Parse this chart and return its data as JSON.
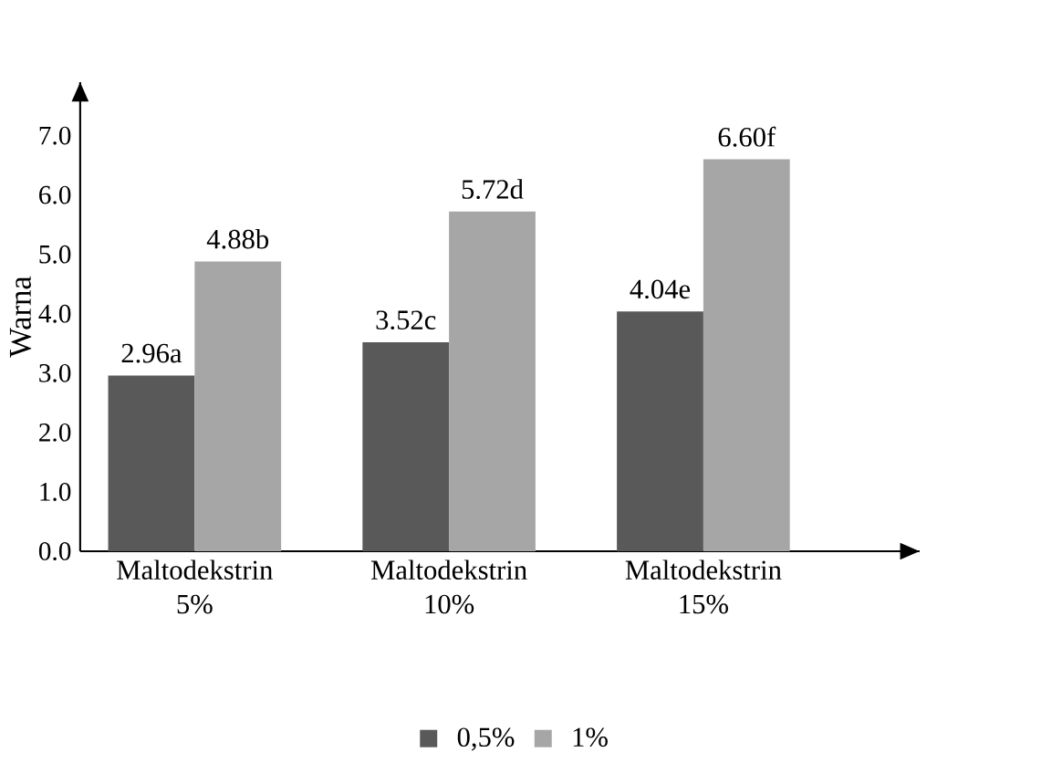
{
  "chart_data": {
    "type": "bar",
    "ylabel": "Warna",
    "categories": [
      "Maltodekstrin 5%",
      "Maltodekstrin 10%",
      "Maltodekstrin 15%"
    ],
    "series": [
      {
        "name": "0,5%",
        "color": "#595959",
        "values": [
          2.96,
          3.52,
          4.04
        ],
        "value_labels": [
          "2.96a",
          "3.52c",
          "4.04e"
        ]
      },
      {
        "name": "1%",
        "color": "#a6a6a6",
        "values": [
          4.88,
          5.72,
          6.6
        ],
        "value_labels": [
          "4.88b",
          "5.72d",
          "6.60f"
        ]
      }
    ],
    "ylim": [
      0,
      7.9
    ],
    "yticks": [
      {
        "value": 0,
        "label": "0.0"
      },
      {
        "value": 1,
        "label": "1.0"
      },
      {
        "value": 2,
        "label": "2.0"
      },
      {
        "value": 3,
        "label": "3.0"
      },
      {
        "value": 4,
        "label": "4.0"
      },
      {
        "value": 5,
        "label": "5.0"
      },
      {
        "value": 6,
        "label": "6.0"
      },
      {
        "value": 7,
        "label": "7.0"
      }
    ],
    "grid": false,
    "legend": "bottom"
  }
}
